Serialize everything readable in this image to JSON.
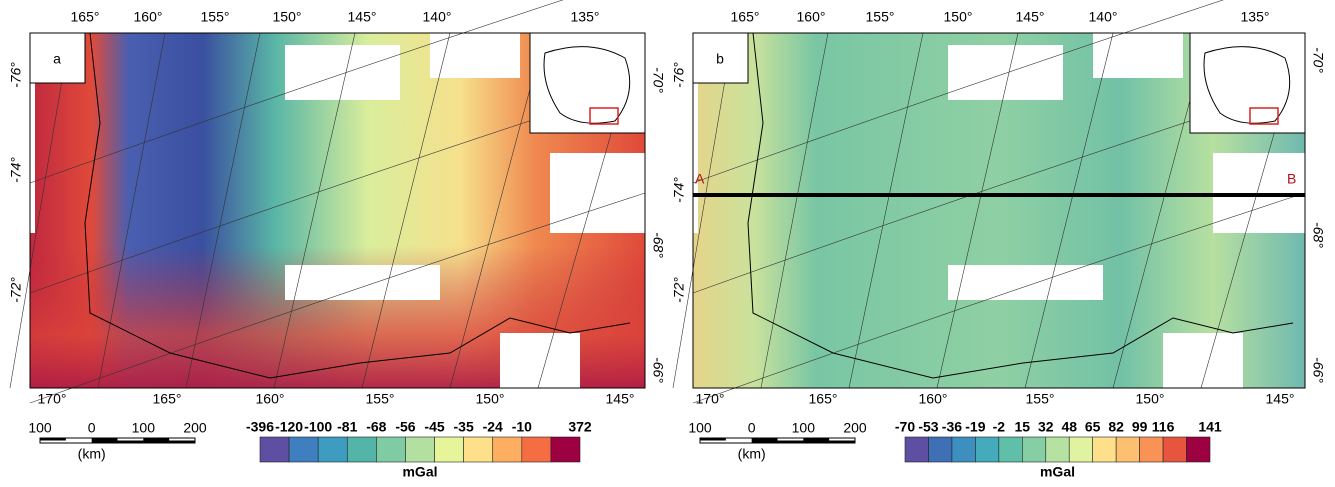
{
  "panels": [
    {
      "label": "a",
      "top_lon": [
        "165°",
        "160°",
        "155°",
        "150°",
        "145°",
        "140°",
        "135°"
      ],
      "bottom_lon": [
        "170°",
        "165°",
        "160°",
        "155°",
        "150°",
        "145°"
      ],
      "left_lat": [
        "-76°",
        "-74°",
        "-72°"
      ],
      "right_lat": [
        "-70°",
        "-68°",
        "-66°"
      ],
      "scale": {
        "ticks": [
          "100",
          "0",
          "100",
          "200"
        ],
        "unit": "(km)"
      },
      "colorbar": {
        "labels": [
          -396,
          -120,
          -100,
          -81,
          -68,
          -56,
          -45,
          -35,
          -24,
          -10,
          372
        ],
        "unit": "mGal",
        "colors": [
          "#5e4fa2",
          "#3f7fbf",
          "#3d9cc0",
          "#52b5a8",
          "#7fcba4",
          "#b3e0a0",
          "#e6f59a",
          "#fee08b",
          "#fdae61",
          "#f46d43",
          "#9e0142"
        ]
      }
    },
    {
      "label": "b",
      "top_lon": [
        "165°",
        "160°",
        "155°",
        "150°",
        "145°",
        "140°",
        "135°"
      ],
      "bottom_lon": [
        "170°",
        "165°",
        "160°",
        "155°",
        "150°",
        "145°"
      ],
      "left_lat": [
        "-76°",
        "-74°",
        "-72°"
      ],
      "right_lat": [
        "-70°",
        "-68°",
        "-66°"
      ],
      "scale": {
        "ticks": [
          "100",
          "0",
          "100",
          "200"
        ],
        "unit": "(km)"
      },
      "profile": {
        "start": "A",
        "end": "B"
      },
      "colorbar": {
        "labels": [
          -70,
          -53,
          -36,
          -19,
          -2,
          15,
          32,
          48,
          65,
          82,
          99,
          116,
          141
        ],
        "unit": "mGal",
        "colors": [
          "#5e4fa2",
          "#3f6fb5",
          "#3d8fc0",
          "#45aabb",
          "#5fbfa8",
          "#86cfa5",
          "#b6e2a1",
          "#e0f3a0",
          "#fee08b",
          "#fdc070",
          "#f99255",
          "#e8553f",
          "#9e0142"
        ]
      }
    }
  ]
}
